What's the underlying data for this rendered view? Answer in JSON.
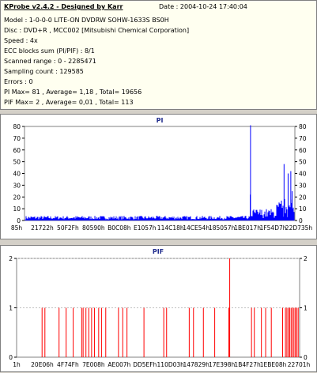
{
  "header": {
    "title": "KProbe v2.4.2 - Designed by Karr",
    "date": "Date : 2004-10-24 17:40:04",
    "lines": [
      "Model : 1-0-0-0 LITE-ON DVDRW SOHW-1633S BS0H",
      "Disc : DVD+R , MCC002 [Mitsubishi Chemical Corporation]",
      "Speed : 4x",
      "ECC blocks sum (PI/PIF) : 8/1",
      "Scanned range : 0 - 2285471",
      "Sampling count : 129585",
      "Errors : 0",
      "PI Max= 81 , Average= 1,18 , Total= 19656",
      "PIF Max= 2 , Average= 0,01 , Total= 113"
    ]
  },
  "chart_data": [
    {
      "type": "bar",
      "title": "PI",
      "ylim": [
        0,
        80
      ],
      "yticks": [
        0,
        10,
        20,
        30,
        40,
        50,
        60,
        70,
        80
      ],
      "xticks": [
        "85h",
        "21722h",
        "50F2Fh",
        "80590h",
        "B0C08h",
        "E1057h",
        "114C18h",
        "14CE54h",
        "185057h",
        "1BE017h",
        "1F54D7h",
        "22D735h"
      ],
      "series_color": "#0000ff",
      "baseline_level": 3,
      "spikes": [
        {
          "pos": 0.836,
          "value": 81
        },
        {
          "pos": 0.835,
          "value": 22
        },
        {
          "pos": 0.96,
          "value": 48
        },
        {
          "pos": 0.975,
          "value": 40
        },
        {
          "pos": 0.985,
          "value": 42
        },
        {
          "pos": 0.99,
          "value": 25
        }
      ]
    },
    {
      "type": "bar",
      "title": "PIF",
      "ylim": [
        0,
        2
      ],
      "yticks": [
        0,
        1,
        2
      ],
      "xticks": [
        "1h",
        "20E06h",
        "4F74Fh",
        "7E008h",
        "AE007h",
        "DD5EFh",
        "110D03h",
        "147829h",
        "17E398h",
        "1B4F27h",
        "1EBE08h",
        "22701h"
      ],
      "series_color": "#ff0000",
      "values_at_1": [
        0.09,
        0.1,
        0.15,
        0.175,
        0.2,
        0.23,
        0.235,
        0.245,
        0.255,
        0.265,
        0.275,
        0.29,
        0.3,
        0.315,
        0.36,
        0.375,
        0.39,
        0.45,
        0.52,
        0.53,
        0.61,
        0.625,
        0.66,
        0.7,
        0.75,
        0.83,
        0.84,
        0.865,
        0.88,
        0.9,
        0.94,
        0.95,
        0.955,
        0.96,
        0.965,
        0.97,
        0.975,
        0.98,
        0.985,
        0.99,
        0.995
      ],
      "values_at_2": [
        0.753
      ]
    }
  ]
}
